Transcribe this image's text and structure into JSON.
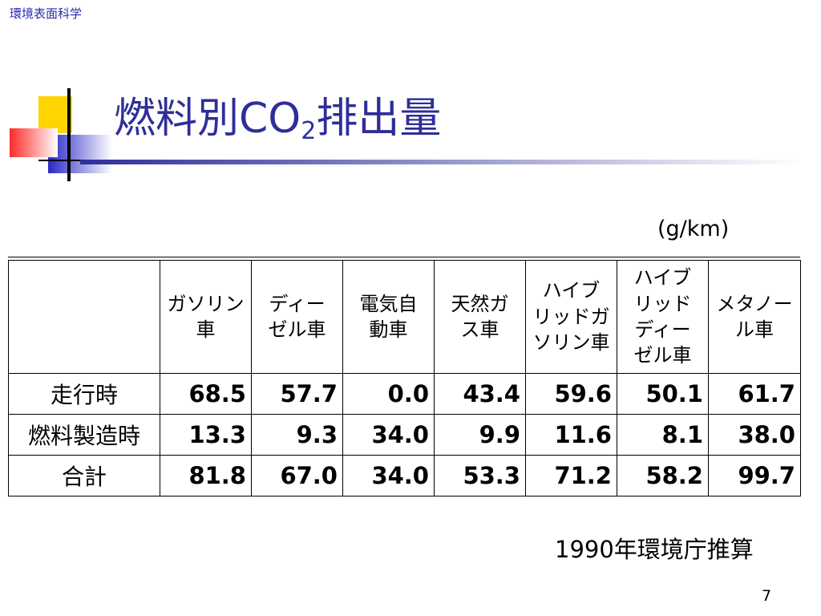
{
  "header": {
    "course": "環境表面科学"
  },
  "title": {
    "prefix": "燃料別CO",
    "subscript": "2",
    "suffix": "排出量"
  },
  "unit": "(g/km)",
  "table": {
    "columns": [
      "",
      "ガソリン車",
      "ディーゼル車",
      "電気自動車",
      "天然ガス車",
      "ハイブリッドガソリン車",
      "ハイブリッドディーゼル車",
      "メタノール車"
    ],
    "column_lines": [
      [
        ""
      ],
      [
        "ガソリン",
        "車"
      ],
      [
        "ディー",
        "ゼル車"
      ],
      [
        "電気自",
        "動車"
      ],
      [
        "天然ガ",
        "ス車"
      ],
      [
        "ハイブ",
        "リッドガ",
        "ソリン車"
      ],
      [
        "ハイブ",
        "リッド",
        "ディー",
        "ゼル車"
      ],
      [
        "メタノー",
        "ル車"
      ]
    ],
    "rows": [
      {
        "label": "走行時",
        "values": [
          "68.5",
          "57.7",
          "0.0",
          "43.4",
          "59.6",
          "50.1",
          "61.7"
        ]
      },
      {
        "label": "燃料製造時",
        "values": [
          "13.3",
          "9.3",
          "34.0",
          "9.9",
          "11.6",
          "8.1",
          "38.0"
        ]
      },
      {
        "label": "合計",
        "values": [
          "81.8",
          "67.0",
          "34.0",
          "53.3",
          "71.2",
          "58.2",
          "99.7"
        ]
      }
    ]
  },
  "source": "1990年環境庁推算",
  "page_number": "7",
  "colors": {
    "title": "#2e2e9a",
    "header_label": "#2b2bb0",
    "logo_yellow": "#ffd400",
    "logo_red": "#ff3333",
    "logo_blue": "#2828c8"
  }
}
